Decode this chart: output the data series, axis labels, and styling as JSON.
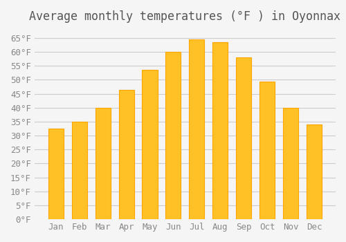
{
  "title": "Average monthly temperatures (°F ) in Oyonnax",
  "months": [
    "Jan",
    "Feb",
    "Mar",
    "Apr",
    "May",
    "Jun",
    "Jul",
    "Aug",
    "Sep",
    "Oct",
    "Nov",
    "Dec"
  ],
  "values": [
    32.5,
    35.0,
    40.0,
    46.5,
    53.5,
    60.0,
    64.5,
    63.5,
    58.0,
    49.5,
    40.0,
    34.0
  ],
  "bar_color_face": "#FFC125",
  "bar_color_edge": "#FFA500",
  "background_color": "#F5F5F5",
  "grid_color": "#CCCCCC",
  "title_color": "#555555",
  "tick_label_color": "#888888",
  "ylim": [
    0,
    68
  ],
  "yticks": [
    0,
    5,
    10,
    15,
    20,
    25,
    30,
    35,
    40,
    45,
    50,
    55,
    60,
    65
  ],
  "ylabel_suffix": "°F",
  "title_fontsize": 12,
  "tick_fontsize": 9
}
